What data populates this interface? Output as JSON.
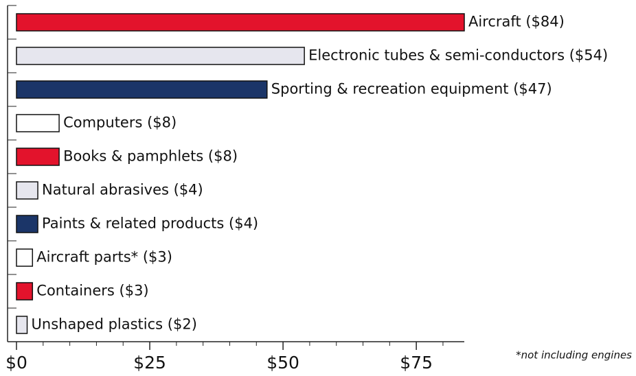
{
  "chart_data": {
    "type": "barh",
    "categories": [
      "Aircraft",
      "Electronic tubes & semi-conductors",
      "Sporting & recreation equipment",
      "Computers",
      "Books & pamphlets",
      "Natural abrasives",
      "Paints & related products",
      "Aircraft parts*",
      "Containers",
      "Unshaped plastics"
    ],
    "values": [
      84,
      54,
      47,
      8,
      8,
      4,
      4,
      3,
      3,
      2
    ],
    "value_labels": [
      "Aircraft ($84)",
      "Electronic tubes & semi-conductors ($54)",
      "Sporting & recreation equipment ($47)",
      "Computers ($8)",
      "Books & pamphlets ($8)",
      "Natural abrasives ($4)",
      "Paints & related products ($4)",
      "Aircraft parts* ($3)",
      "Containers ($3)",
      "Unshaped plastics ($2)"
    ],
    "colors": [
      "#e3132c",
      "#e6e6ee",
      "#1b3568",
      "#ffffff",
      "#e3132c",
      "#e6e6ee",
      "#1b3568",
      "#ffffff",
      "#e3132c",
      "#e6e6ee"
    ],
    "xlim": [
      0,
      84
    ],
    "xticks": [
      {
        "value": 0,
        "label": "$0"
      },
      {
        "value": 25,
        "label": "$25"
      },
      {
        "value": 50,
        "label": "$50"
      },
      {
        "value": 75,
        "label": "$75"
      }
    ],
    "minor_xticks": [
      5,
      10,
      15,
      20,
      30,
      35,
      40,
      45,
      55,
      60,
      65,
      70,
      80
    ],
    "note": "*not including engines"
  }
}
